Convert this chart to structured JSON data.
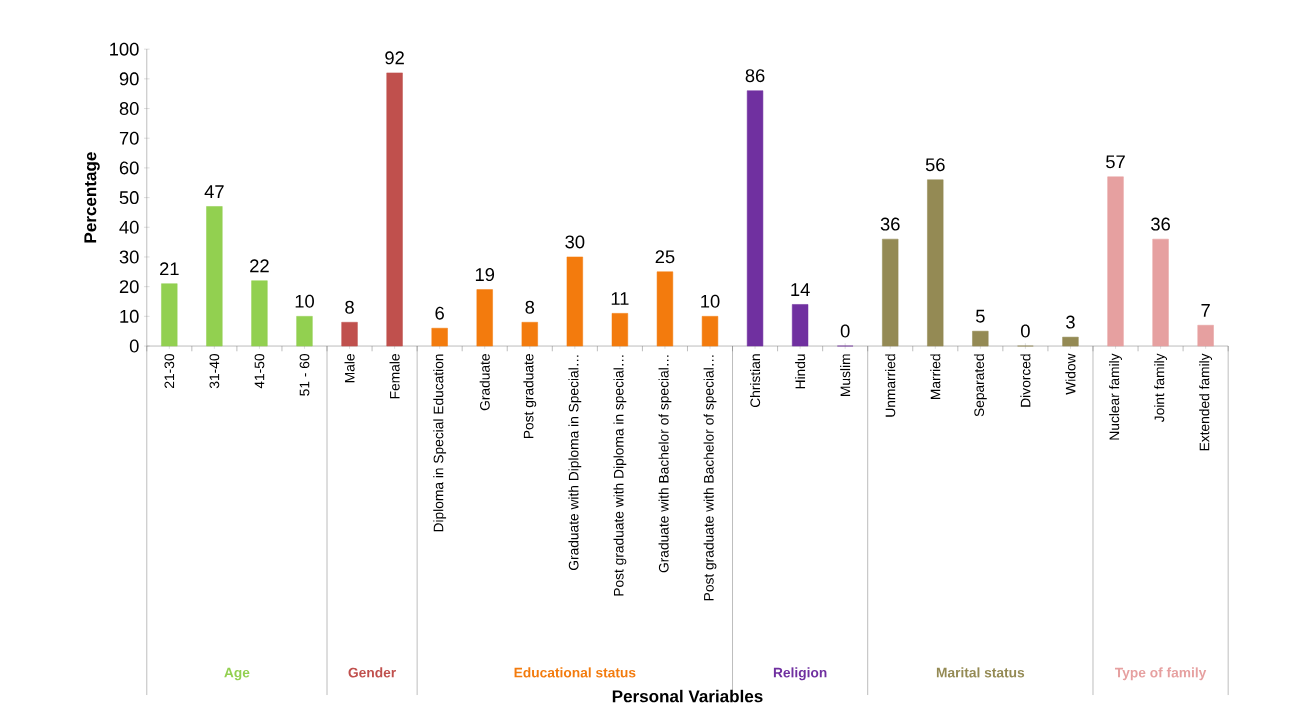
{
  "chart_data": {
    "type": "bar",
    "annotations": [
      "Personal Variables"
    ],
    "ylabel": "Percentage",
    "categories": [
      "21-30",
      "31-40",
      "41-50",
      "51 - 60",
      "Male",
      "Female",
      "Diploma in Special Education",
      "Graduate",
      "Post graduate",
      "Graduate with Diploma in Special…",
      "Post graduate with Diploma in special…",
      "Graduate with Bachelor of special…",
      "Post graduate with Bachelor of special…",
      "Christian",
      "Hindu",
      "Muslim",
      "Unmarried",
      "Married",
      "Separated",
      "Divorced",
      "Widow",
      "Nuclear family",
      "Joint family",
      "Extended family"
    ],
    "series": [
      {
        "name": "Age",
        "color": "#92d050",
        "values": [
          21,
          47,
          22,
          10,
          null,
          null,
          null,
          null,
          null,
          null,
          null,
          null,
          null,
          null,
          null,
          null,
          null,
          null,
          null,
          null,
          null,
          null,
          null,
          null
        ]
      },
      {
        "name": "Gender",
        "color": "#c0504d",
        "values": [
          null,
          null,
          null,
          null,
          8,
          92,
          null,
          null,
          null,
          null,
          null,
          null,
          null,
          null,
          null,
          null,
          null,
          null,
          null,
          null,
          null,
          null,
          null,
          null
        ]
      },
      {
        "name": "Educational status",
        "color": "#f37b0d",
        "values": [
          null,
          null,
          null,
          null,
          null,
          null,
          6,
          19,
          8,
          30,
          11,
          25,
          10,
          null,
          null,
          null,
          null,
          null,
          null,
          null,
          null,
          null,
          null,
          null
        ]
      },
      {
        "name": "Religion",
        "color": "#7030a0",
        "values": [
          null,
          null,
          null,
          null,
          null,
          null,
          null,
          null,
          null,
          null,
          null,
          null,
          null,
          86,
          14,
          0,
          null,
          null,
          null,
          null,
          null,
          null,
          null,
          null
        ]
      },
      {
        "name": "Marital status",
        "color": "#948a54",
        "values": [
          null,
          null,
          null,
          null,
          null,
          null,
          null,
          null,
          null,
          null,
          null,
          null,
          null,
          null,
          null,
          null,
          36,
          56,
          5,
          0,
          3,
          null,
          null,
          null
        ]
      },
      {
        "name": "Type of family",
        "color": "#e6a0a0",
        "values": [
          null,
          null,
          null,
          null,
          null,
          null,
          null,
          null,
          null,
          null,
          null,
          null,
          null,
          null,
          null,
          null,
          null,
          null,
          null,
          null,
          null,
          57,
          36,
          7
        ]
      }
    ],
    "ylim": [
      0,
      100
    ],
    "yticks": [
      0,
      10,
      20,
      30,
      40,
      50,
      60,
      70,
      80,
      90,
      100
    ],
    "data_labels": true
  }
}
